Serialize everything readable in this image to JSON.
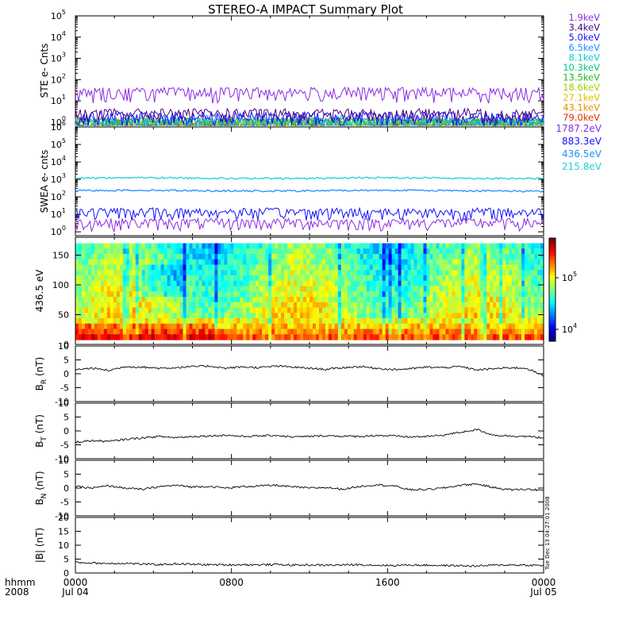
{
  "title": "STEREO-A IMPACT Summary Plot",
  "chart_data": [
    {
      "id": "ste",
      "type": "line",
      "ylabel": "STE e- Cnts",
      "yscale": "log",
      "ylim": [
        0.7,
        100000
      ],
      "ytick_labels": [
        [
          "10",
          "0"
        ],
        [
          "10",
          "1"
        ],
        [
          "10",
          "2"
        ],
        [
          "10",
          "3"
        ],
        [
          "10",
          "4"
        ],
        [
          "10",
          "5"
        ]
      ],
      "series": [
        {
          "name": "1.9keV",
          "color": "#8a2be2",
          "level": 22
        },
        {
          "name": "3.4keV",
          "color": "#4b0082",
          "level": 2.2
        },
        {
          "name": "5.0keV",
          "color": "#1010ff",
          "level": 1.6
        },
        {
          "name": "6.5keV",
          "color": "#1e90ff",
          "level": 1.1
        },
        {
          "name": "8.1keV",
          "color": "#00ced1",
          "level": 0.9
        },
        {
          "name": "10.3keV",
          "color": "#00c878",
          "level": 0.8
        },
        {
          "name": "13.5keV",
          "color": "#22b822",
          "level": 0.8
        },
        {
          "name": "18.6keV",
          "color": "#a0d000",
          "level": 0.8
        },
        {
          "name": "27.1keV",
          "color": "#e0c000",
          "level": 0.8
        },
        {
          "name": "43.1keV",
          "color": "#e88a00",
          "level": 0.8
        },
        {
          "name": "79.0keV",
          "color": "#e03000",
          "level": 0.8
        }
      ]
    },
    {
      "id": "swea",
      "type": "line",
      "ylabel": "SWEA e- cnts",
      "yscale": "log",
      "ylim": [
        0.6,
        1000000
      ],
      "ytick_labels": [
        [
          "10",
          "0"
        ],
        [
          "10",
          "1"
        ],
        [
          "10",
          "2"
        ],
        [
          "10",
          "3"
        ],
        [
          "10",
          "4"
        ],
        [
          "10",
          "5"
        ],
        [
          "10",
          "6"
        ]
      ],
      "series": [
        {
          "name": "1787.2eV",
          "color": "#8a2be2",
          "level": 3
        },
        {
          "name": "883.3eV",
          "color": "#1010ff",
          "level": 12
        },
        {
          "name": "436.5eV",
          "color": "#1e90ff",
          "level": 230
        },
        {
          "name": "215.8eV",
          "color": "#20d0d0",
          "level": 1200
        }
      ]
    },
    {
      "id": "pad",
      "type": "heatmap",
      "ylabel": "436.5 eV",
      "ylim": [
        0,
        180
      ],
      "ytick_labels": [
        "0",
        "50",
        "100",
        "150"
      ],
      "colorbar_ticks": [
        [
          "10",
          "4"
        ],
        [
          "10",
          "5"
        ]
      ]
    },
    {
      "id": "br",
      "type": "line",
      "ylabel": "B",
      "ylabel_sub": "R",
      "yunit": "(nT)",
      "ylim": [
        -10,
        10
      ],
      "ytick_labels": [
        "-10",
        "-5",
        "0",
        "5",
        "10"
      ],
      "values_nT": [
        1.5,
        2.0,
        1.2,
        2.6,
        2.4,
        2.0,
        2.2,
        2.6,
        2.8,
        2.0,
        2.5,
        2.2,
        2.8,
        2.4,
        2.0,
        1.6,
        2.2,
        2.6,
        2.0,
        1.5,
        1.8,
        2.4,
        2.2,
        2.6,
        1.4,
        1.8,
        2.2,
        2.0,
        -0.8
      ]
    },
    {
      "id": "bt",
      "type": "line",
      "ylabel": "B",
      "ylabel_sub": "T",
      "yunit": "(nT)",
      "ylim": [
        -10,
        10
      ],
      "ytick_labels": [
        "-10",
        "-5",
        "0",
        "5",
        "10"
      ],
      "values_nT": [
        -4.0,
        -3.5,
        -3.8,
        -3.0,
        -2.5,
        -2.0,
        -2.4,
        -2.0,
        -1.8,
        -1.5,
        -2.0,
        -1.8,
        -1.6,
        -2.2,
        -2.0,
        -1.7,
        -1.9,
        -2.0,
        -1.6,
        -1.8,
        -2.2,
        -2.0,
        -1.5,
        -0.5,
        0.5,
        -1.5,
        -1.8,
        -2.0,
        -2.5
      ]
    },
    {
      "id": "bn",
      "type": "line",
      "ylabel": "B",
      "ylabel_sub": "N",
      "yunit": "(nT)",
      "ylim": [
        -10,
        10
      ],
      "ytick_labels": [
        "-10",
        "-5",
        "0",
        "5",
        "10"
      ],
      "values_nT": [
        0.5,
        0.0,
        0.8,
        0.0,
        -0.5,
        0.5,
        1.0,
        0.4,
        0.6,
        0.0,
        0.5,
        0.8,
        1.0,
        0.4,
        0.0,
        0.2,
        -0.4,
        0.6,
        1.2,
        0.8,
        -0.6,
        -0.5,
        0.0,
        1.0,
        1.5,
        0.2,
        -0.6,
        -0.4,
        -0.8
      ]
    },
    {
      "id": "bmag",
      "type": "line",
      "ylabel": "|B| (nT)",
      "ylim": [
        0,
        20
      ],
      "ytick_labels": [
        "0",
        "5",
        "10",
        "15",
        "20"
      ],
      "values_nT": [
        3.8,
        3.6,
        3.4,
        3.5,
        3.2,
        3.0,
        3.3,
        3.1,
        3.0,
        2.9,
        3.0,
        2.9,
        3.1,
        2.8,
        2.9,
        2.8,
        2.9,
        3.0,
        2.8,
        2.7,
        2.9,
        2.8,
        2.7,
        2.6,
        2.5,
        2.8,
        2.9,
        2.8,
        2.7
      ]
    }
  ],
  "xaxis": {
    "label_lines": [
      "hhmm",
      "2008"
    ],
    "ticks": [
      {
        "time": "0000",
        "date": "Jul 04",
        "hours": 0
      },
      {
        "time": "0800",
        "date": "",
        "hours": 8
      },
      {
        "time": "1600",
        "date": "",
        "hours": 16
      },
      {
        "time": "0000",
        "date": "Jul 05",
        "hours": 24
      }
    ],
    "range_hours": [
      0,
      24
    ]
  },
  "side_stamp": "Tue Dec 13 04:27:01 2008"
}
